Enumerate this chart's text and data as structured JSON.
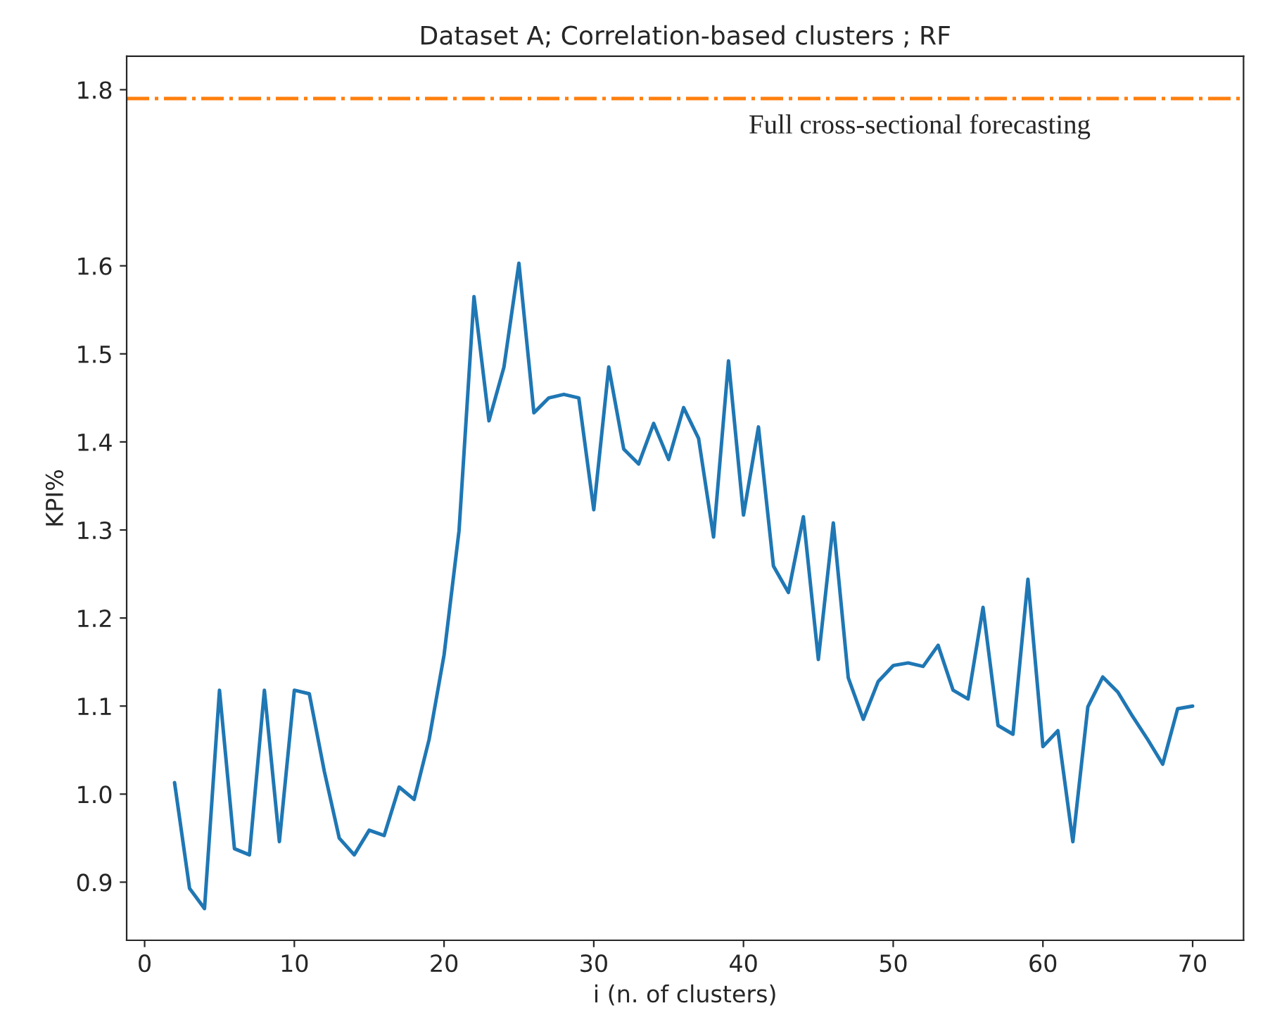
{
  "chart_data": {
    "type": "line",
    "title": "Dataset A; Correlation-based clusters ; RF",
    "xlabel": "i (n. of clusters)",
    "ylabel": "KPI%",
    "xlim": [
      -1.2,
      73.4
    ],
    "xticks": [
      0,
      10,
      20,
      30,
      40,
      50,
      60,
      70
    ],
    "ylim": [
      0.834,
      1.838
    ],
    "yticks": [
      0.9,
      {
        "value": 1.0,
        "label": "1.0"
      },
      1.1,
      1.2,
      1.3,
      1.4,
      1.5,
      1.6,
      1.8
    ],
    "grid": false,
    "ref_lines": [
      {
        "axis": "y",
        "value": 1.79,
        "color": "#ff7f0e",
        "line_style": "dashdot",
        "label": "Full cross-sectional forecasting"
      }
    ],
    "series": [
      {
        "color": "#1f77b4",
        "x": [
          2,
          3,
          4,
          5,
          6,
          7,
          8,
          9,
          10,
          11,
          12,
          13,
          14,
          15,
          16,
          17,
          18,
          19,
          20,
          21,
          22,
          23,
          24,
          25,
          26,
          27,
          28,
          29,
          30,
          31,
          32,
          33,
          34,
          35,
          36,
          37,
          38,
          39,
          40,
          41,
          42,
          43,
          44,
          45,
          46,
          47,
          48,
          49,
          50,
          51,
          52,
          53,
          54,
          55,
          56,
          57,
          58,
          59,
          60,
          61,
          62,
          63,
          64,
          65,
          66,
          67,
          68,
          69,
          70
        ],
        "values": [
          1.013,
          0.893,
          0.87,
          1.118,
          0.938,
          0.931,
          1.118,
          0.946,
          1.118,
          1.114,
          1.026,
          0.95,
          0.931,
          0.959,
          0.953,
          1.008,
          0.994,
          1.062,
          1.158,
          1.299,
          1.565,
          1.424,
          1.485,
          1.603,
          1.433,
          1.45,
          1.454,
          1.45,
          1.323,
          1.485,
          1.392,
          1.375,
          1.421,
          1.38,
          1.439,
          1.404,
          1.292,
          1.492,
          1.317,
          1.417,
          1.259,
          1.229,
          1.315,
          1.153,
          1.308,
          1.132,
          1.085,
          1.128,
          1.146,
          1.149,
          1.145,
          1.169,
          1.118,
          1.108,
          1.212,
          1.078,
          1.068,
          1.244,
          1.054,
          1.072,
          0.946,
          1.099,
          1.133,
          1.116,
          1.088,
          1.062,
          1.034,
          1.097,
          1.1
        ]
      }
    ]
  }
}
